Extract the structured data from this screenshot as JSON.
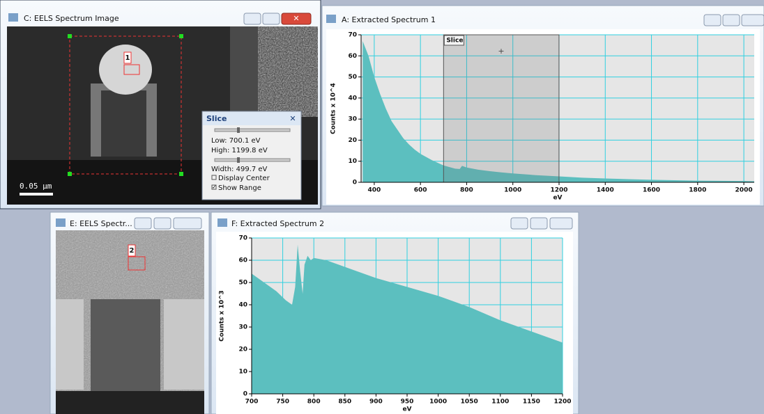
{
  "windows": [
    {
      "title": "C: EELS Spectrum Image",
      "roi_label": "1",
      "scale_bar": "0.05 µm"
    },
    {
      "title": "A: Extracted Spectrum 1",
      "chart": {
        "type": "area",
        "color": "#5cbfbf",
        "grid": true,
        "xlabel": "eV",
        "ylabel": "Counts x 10^4",
        "x": [
          350,
          375,
          400,
          425,
          450,
          475,
          500,
          525,
          550,
          575,
          600,
          650,
          700,
          750,
          770,
          780,
          800,
          850,
          900,
          950,
          1000,
          1100,
          1200,
          1300,
          1400,
          1500,
          1600,
          1700,
          1800,
          1900,
          2000,
          2045
        ],
        "values": [
          67,
          60,
          50,
          42,
          35,
          29,
          25,
          21,
          18,
          15.5,
          13.5,
          10.5,
          8,
          6.5,
          6.3,
          7.8,
          7,
          6,
          5.3,
          4.7,
          4.2,
          3.4,
          2.8,
          2.2,
          1.8,
          1.5,
          1.2,
          1,
          0.8,
          0.7,
          0.6,
          0.5
        ],
        "xlim": [
          343,
          2045
        ],
        "ylim": [
          0,
          70
        ],
        "xticks": [
          400,
          600,
          800,
          1000,
          1200,
          1400,
          1600,
          1800,
          2000
        ],
        "yticks": [
          0,
          10,
          20,
          30,
          40,
          50,
          60,
          70
        ],
        "range": [
          700.1,
          1199.8
        ],
        "range_label": "Slice"
      }
    },
    {
      "title": "E: EELS Spectr...",
      "roi_label": "2"
    },
    {
      "title": "F: Extracted Spectrum 2",
      "chart": {
        "type": "area",
        "color": "#5cbfbf",
        "grid": true,
        "xlabel": "eV",
        "ylabel": "Counts x 10^3",
        "x": [
          700,
          720,
          740,
          755,
          765,
          770,
          774,
          778,
          782,
          785,
          790,
          795,
          800,
          820,
          850,
          900,
          950,
          1000,
          1050,
          1100,
          1150,
          1200
        ],
        "values": [
          54,
          50,
          46,
          42,
          40,
          48,
          67,
          55,
          45,
          58,
          62,
          60,
          61,
          60,
          57,
          52,
          48,
          44,
          39,
          33,
          28,
          23
        ],
        "xlim": [
          700,
          1200
        ],
        "ylim": [
          0,
          70
        ],
        "xticks": [
          700,
          750,
          800,
          850,
          900,
          950,
          1000,
          1050,
          1100,
          1150,
          1200
        ],
        "yticks": [
          0,
          10,
          20,
          30,
          40,
          50,
          60,
          70
        ]
      }
    }
  ],
  "slice_panel": {
    "title": "Slice",
    "low": "Low: 700.1 eV",
    "high": "High: 1199.8 eV",
    "width": "Width: 499.7 eV",
    "display_center": "Display Center",
    "show_range": "Show Range"
  }
}
